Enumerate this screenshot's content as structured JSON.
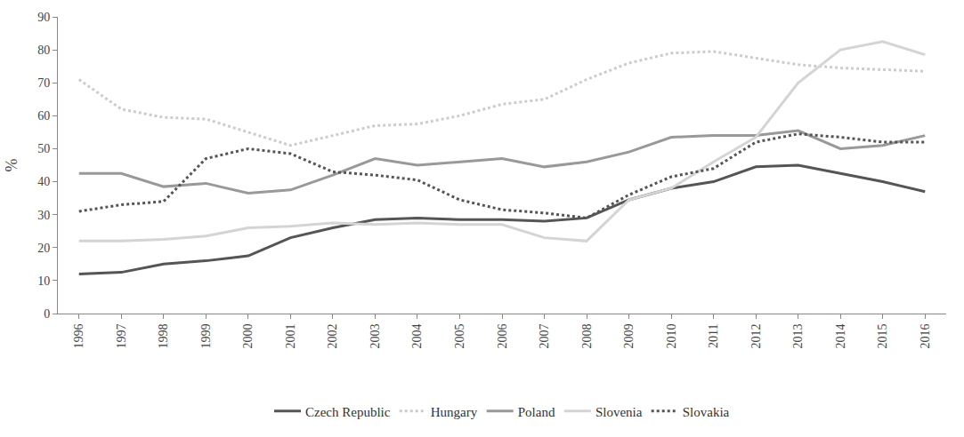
{
  "chart_data": {
    "type": "line",
    "y_label": "%",
    "categories": [
      "1996",
      "1997",
      "1998",
      "1999",
      "2000",
      "2001",
      "2002",
      "2003",
      "2004",
      "2005",
      "2006",
      "2007",
      "2008",
      "2009",
      "2010",
      "2011",
      "2012",
      "2013",
      "2014",
      "2015",
      "2016"
    ],
    "series": [
      {
        "name": "Czech Republic",
        "color": "#555555",
        "line_style": "solid",
        "values": [
          12,
          12.5,
          15,
          16,
          17.5,
          23,
          26,
          28.5,
          29,
          28.5,
          28.5,
          28,
          29,
          34.5,
          38,
          40,
          44.5,
          45,
          42.5,
          40,
          37
        ]
      },
      {
        "name": "Hungary",
        "color": "#cccccc",
        "line_style": "dotted",
        "values": [
          71,
          62,
          59.5,
          59,
          55,
          51,
          54,
          57,
          57.5,
          60,
          63.5,
          65,
          71,
          76,
          79,
          79.5,
          77.5,
          75.5,
          74.5,
          74,
          73.5
        ]
      },
      {
        "name": "Poland",
        "color": "#999999",
        "line_style": "solid",
        "values": [
          42.5,
          42.5,
          38.5,
          39.5,
          36.5,
          37.5,
          42,
          47,
          45,
          46,
          47,
          44.5,
          46,
          49,
          53.5,
          54,
          54,
          55.5,
          50,
          51,
          54
        ]
      },
      {
        "name": "Slovenia",
        "color": "#d4d4d4",
        "line_style": "solid",
        "values": [
          22,
          22,
          22.5,
          23.5,
          26,
          26.5,
          27.5,
          27,
          27.5,
          27,
          27,
          23,
          22,
          34.5,
          38,
          46,
          53.5,
          70,
          80,
          82.5,
          78.5
        ]
      },
      {
        "name": "Slovakia",
        "color": "#555555",
        "line_style": "dotted",
        "values": [
          31,
          33,
          34,
          47,
          50,
          48.5,
          43,
          42,
          40.5,
          34.5,
          31.5,
          30.5,
          29,
          36,
          41.5,
          44,
          52,
          54.5,
          53.5,
          52,
          52
        ]
      }
    ],
    "ylim": [
      0,
      90
    ],
    "yticks": [
      0,
      10,
      20,
      30,
      40,
      50,
      60,
      70,
      80,
      90
    ],
    "grid": false,
    "legend": "bottom"
  }
}
